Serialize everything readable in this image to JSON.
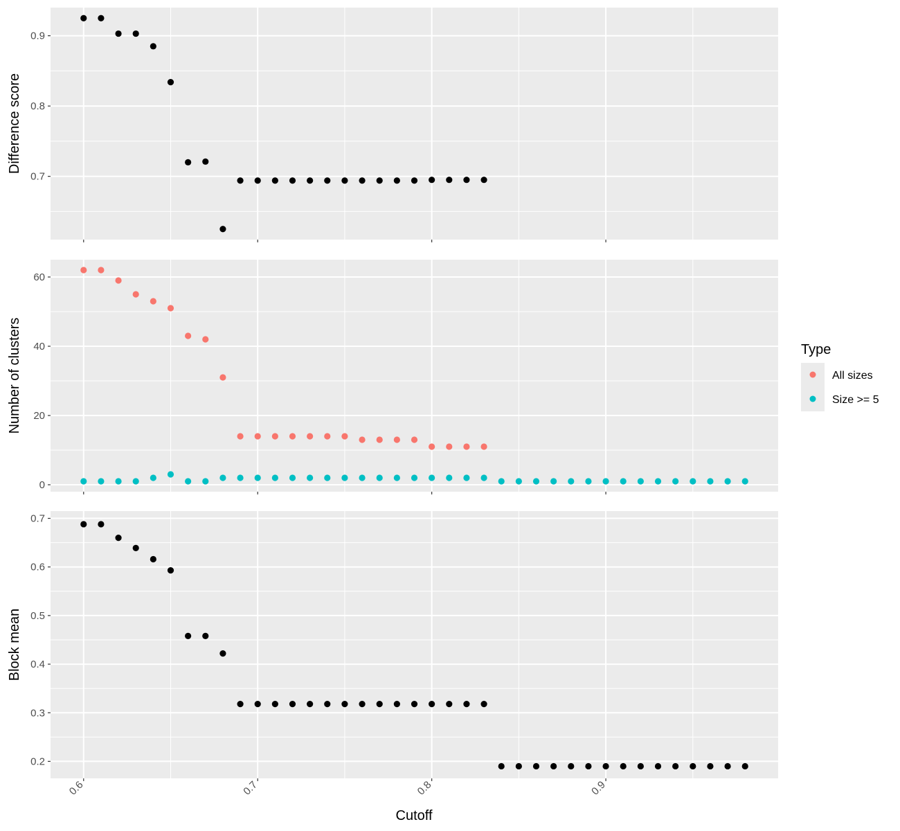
{
  "chart_data": {
    "type": "scatter",
    "xlabel": "Cutoff",
    "xlim": [
      0.581,
      0.999
    ],
    "x_ticks": [
      "0.6",
      "0.7",
      "0.8",
      "0.9"
    ],
    "colors": {
      "panel_bg": "#ebebeb",
      "grid": "#ffffff",
      "point_default": "#000000",
      "all_sizes": "#f8766d",
      "size_ge_5": "#00bfc4"
    },
    "legend": {
      "title": "Type",
      "position": "right",
      "entries": [
        {
          "label": "All sizes",
          "color": "#f8766d"
        },
        {
          "label": "Size >= 5",
          "color": "#00bfc4"
        }
      ]
    },
    "panels": [
      {
        "ylabel": "Difference score",
        "ylim": [
          0.61,
          0.94
        ],
        "y_ticks": [
          "0.7",
          "0.8",
          "0.9"
        ],
        "series": [
          {
            "color": "#000000",
            "x": [
              0.6,
              0.61,
              0.62,
              0.63,
              0.64,
              0.65,
              0.66,
              0.67,
              0.68,
              0.69,
              0.7,
              0.71,
              0.72,
              0.73,
              0.74,
              0.75,
              0.76,
              0.77,
              0.78,
              0.79,
              0.8,
              0.81,
              0.82,
              0.83
            ],
            "y": [
              0.925,
              0.925,
              0.903,
              0.903,
              0.885,
              0.834,
              0.72,
              0.721,
              0.625,
              0.694,
              0.694,
              0.694,
              0.694,
              0.694,
              0.694,
              0.694,
              0.694,
              0.694,
              0.694,
              0.694,
              0.695,
              0.695,
              0.695,
              0.695
            ]
          }
        ]
      },
      {
        "ylabel": "Number of clusters",
        "ylim": [
          -2,
          65
        ],
        "y_ticks": [
          "0",
          "20",
          "40",
          "60"
        ],
        "series": [
          {
            "name": "All sizes",
            "color": "#f8766d",
            "x": [
              0.6,
              0.61,
              0.62,
              0.63,
              0.64,
              0.65,
              0.66,
              0.67,
              0.68,
              0.69,
              0.7,
              0.71,
              0.72,
              0.73,
              0.74,
              0.75,
              0.76,
              0.77,
              0.78,
              0.79,
              0.8,
              0.81,
              0.82,
              0.83
            ],
            "y": [
              62,
              62,
              59,
              55,
              53,
              51,
              43,
              42,
              31,
              14,
              14,
              14,
              14,
              14,
              14,
              14,
              13,
              13,
              13,
              13,
              11,
              11,
              11,
              11
            ]
          },
          {
            "name": "Size >= 5",
            "color": "#00bfc4",
            "x": [
              0.6,
              0.61,
              0.62,
              0.63,
              0.64,
              0.65,
              0.66,
              0.67,
              0.68,
              0.69,
              0.7,
              0.71,
              0.72,
              0.73,
              0.74,
              0.75,
              0.76,
              0.77,
              0.78,
              0.79,
              0.8,
              0.81,
              0.82,
              0.83,
              0.84,
              0.85,
              0.86,
              0.87,
              0.88,
              0.89,
              0.9,
              0.91,
              0.92,
              0.93,
              0.94,
              0.95,
              0.96,
              0.97,
              0.98
            ],
            "y": [
              1,
              1,
              1,
              1,
              2,
              3,
              1,
              1,
              2,
              2,
              2,
              2,
              2,
              2,
              2,
              2,
              2,
              2,
              2,
              2,
              2,
              2,
              2,
              2,
              1,
              1,
              1,
              1,
              1,
              1,
              1,
              1,
              1,
              1,
              1,
              1,
              1,
              1,
              1
            ]
          }
        ]
      },
      {
        "ylabel": "Block mean",
        "ylim": [
          0.165,
          0.715
        ],
        "y_ticks": [
          "0.2",
          "0.3",
          "0.4",
          "0.5",
          "0.6",
          "0.7"
        ],
        "series": [
          {
            "color": "#000000",
            "x": [
              0.6,
              0.61,
              0.62,
              0.63,
              0.64,
              0.65,
              0.66,
              0.67,
              0.68,
              0.69,
              0.7,
              0.71,
              0.72,
              0.73,
              0.74,
              0.75,
              0.76,
              0.77,
              0.78,
              0.79,
              0.8,
              0.81,
              0.82,
              0.83,
              0.84,
              0.85,
              0.86,
              0.87,
              0.88,
              0.89,
              0.9,
              0.91,
              0.92,
              0.93,
              0.94,
              0.95,
              0.96,
              0.97,
              0.98
            ],
            "y": [
              0.688,
              0.688,
              0.66,
              0.639,
              0.616,
              0.593,
              0.458,
              0.458,
              0.422,
              0.318,
              0.318,
              0.318,
              0.318,
              0.318,
              0.318,
              0.318,
              0.318,
              0.318,
              0.318,
              0.318,
              0.318,
              0.318,
              0.318,
              0.318,
              0.19,
              0.19,
              0.19,
              0.19,
              0.19,
              0.19,
              0.19,
              0.19,
              0.19,
              0.19,
              0.19,
              0.19,
              0.19,
              0.19,
              0.19
            ]
          }
        ]
      }
    ]
  }
}
